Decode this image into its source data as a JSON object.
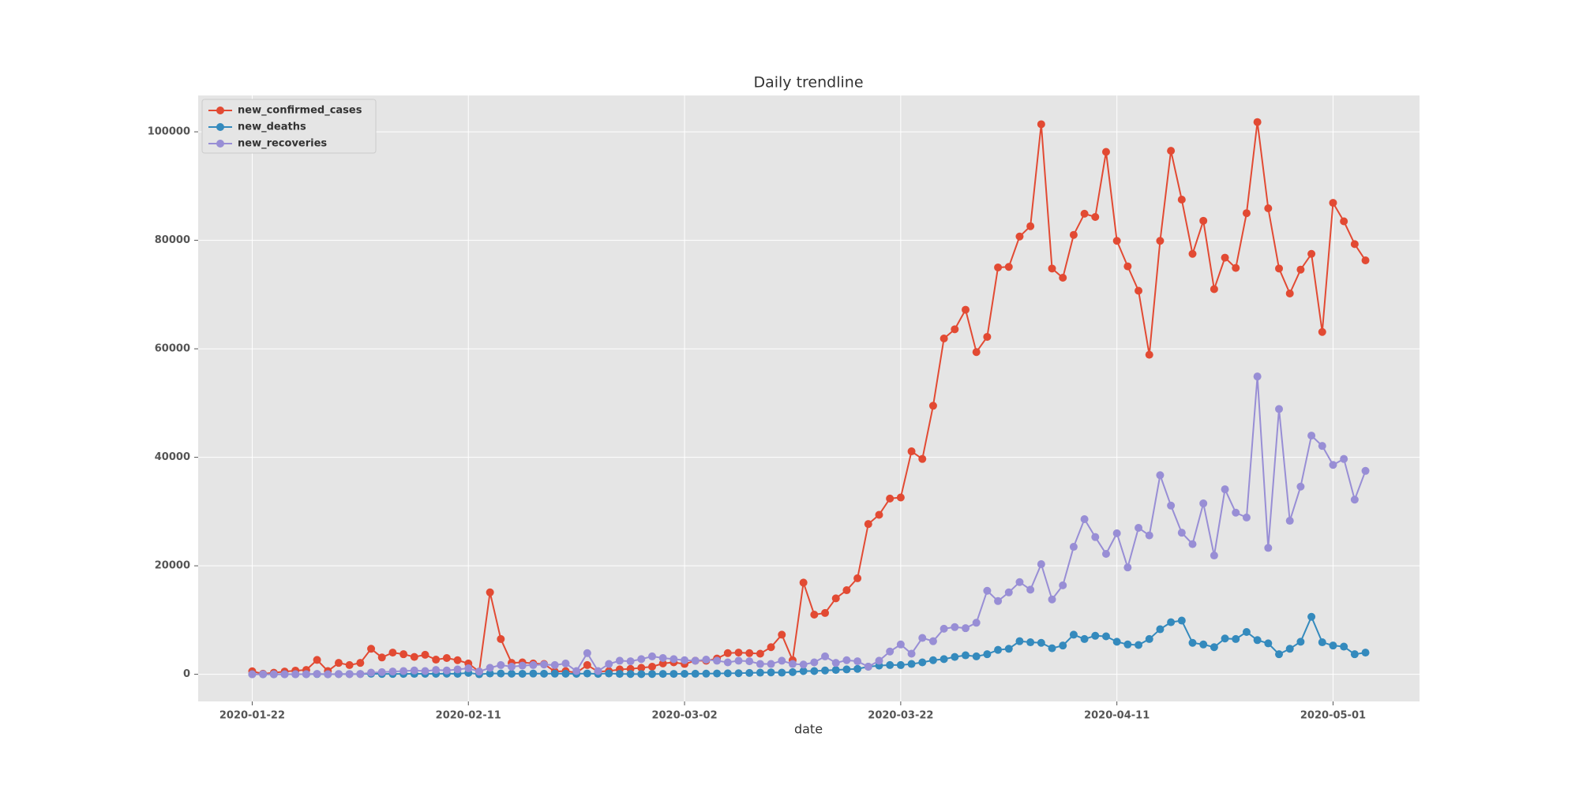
{
  "chart_data": {
    "type": "line",
    "title": "Daily trendline",
    "x_label": "date",
    "x": [
      "2020-01-22",
      "2020-01-23",
      "2020-01-24",
      "2020-01-25",
      "2020-01-26",
      "2020-01-27",
      "2020-01-28",
      "2020-01-29",
      "2020-01-30",
      "2020-01-31",
      "2020-02-01",
      "2020-02-02",
      "2020-02-03",
      "2020-02-04",
      "2020-02-05",
      "2020-02-06",
      "2020-02-07",
      "2020-02-08",
      "2020-02-09",
      "2020-02-10",
      "2020-02-11",
      "2020-02-12",
      "2020-02-13",
      "2020-02-14",
      "2020-02-15",
      "2020-02-16",
      "2020-02-17",
      "2020-02-18",
      "2020-02-19",
      "2020-02-20",
      "2020-02-21",
      "2020-02-22",
      "2020-02-23",
      "2020-02-24",
      "2020-02-25",
      "2020-02-26",
      "2020-02-27",
      "2020-02-28",
      "2020-02-29",
      "2020-03-01",
      "2020-03-02",
      "2020-03-03",
      "2020-03-04",
      "2020-03-05",
      "2020-03-06",
      "2020-03-07",
      "2020-03-08",
      "2020-03-09",
      "2020-03-10",
      "2020-03-11",
      "2020-03-12",
      "2020-03-13",
      "2020-03-14",
      "2020-03-15",
      "2020-03-16",
      "2020-03-17",
      "2020-03-18",
      "2020-03-19",
      "2020-03-20",
      "2020-03-21",
      "2020-03-22",
      "2020-03-23",
      "2020-03-24",
      "2020-03-25",
      "2020-03-26",
      "2020-03-27",
      "2020-03-28",
      "2020-03-29",
      "2020-03-30",
      "2020-03-31",
      "2020-04-01",
      "2020-04-02",
      "2020-04-03",
      "2020-04-04",
      "2020-04-05",
      "2020-04-06",
      "2020-04-07",
      "2020-04-08",
      "2020-04-09",
      "2020-04-10",
      "2020-04-11",
      "2020-04-12",
      "2020-04-13",
      "2020-04-14",
      "2020-04-15",
      "2020-04-16",
      "2020-04-17",
      "2020-04-18",
      "2020-04-19",
      "2020-04-20",
      "2020-04-21",
      "2020-04-22",
      "2020-04-23",
      "2020-04-24",
      "2020-04-25",
      "2020-04-26",
      "2020-04-27",
      "2020-04-28",
      "2020-04-29",
      "2020-04-30",
      "2020-05-01",
      "2020-05-02",
      "2020-05-03",
      "2020-05-04"
    ],
    "series": [
      {
        "name": "new_confirmed_cases",
        "color": "#E24A33",
        "values": [
          555,
          100,
          290,
          500,
          680,
          800,
          2650,
          600,
          2100,
          1700,
          2100,
          4700,
          3100,
          4000,
          3700,
          3200,
          3600,
          2700,
          3000,
          2600,
          2000,
          500,
          15100,
          6500,
          2100,
          2200,
          2000,
          1900,
          500,
          600,
          300,
          1700,
          500,
          600,
          900,
          1000,
          1200,
          1400,
          2000,
          2200,
          1900,
          2500,
          2500,
          2900,
          3900,
          4000,
          3900,
          3800,
          5000,
          7300,
          2600,
          16900,
          11000,
          11300,
          14000,
          15500,
          17700,
          27700,
          29400,
          32400,
          32600,
          41100,
          39700,
          49500,
          61900,
          63600,
          67200,
          59400,
          62200,
          75000,
          75100,
          80700,
          82600,
          101400,
          74800,
          73100,
          81000,
          84900,
          84300,
          96300,
          79900,
          75200,
          70700,
          58900,
          79900,
          96500,
          87500,
          77500,
          83600,
          71000,
          76800,
          74900,
          85000,
          101800,
          85900,
          74800,
          70200,
          74600,
          77500,
          63100,
          86900,
          83500,
          79300,
          76300
        ]
      },
      {
        "name": "new_deaths",
        "color": "#348ABD",
        "values": [
          17,
          1,
          8,
          16,
          14,
          26,
          49,
          2,
          38,
          42,
          46,
          103,
          64,
          66,
          73,
          86,
          89,
          97,
          108,
          97,
          254,
          13,
          143,
          142,
          106,
          98,
          139,
          112,
          118,
          109,
          97,
          150,
          79,
          150,
          80,
          55,
          40,
          60,
          70,
          80,
          90,
          100,
          120,
          150,
          180,
          200,
          250,
          300,
          350,
          300,
          400,
          600,
          600,
          700,
          800,
          900,
          1000,
          1400,
          1600,
          1700,
          1700,
          1900,
          2200,
          2600,
          2800,
          3200,
          3500,
          3300,
          3700,
          4500,
          4700,
          6100,
          5900,
          5800,
          4800,
          5300,
          7300,
          6500,
          7100,
          7000,
          6000,
          5500,
          5400,
          6500,
          8300,
          9600,
          9900,
          5800,
          5500,
          5000,
          6600,
          6500,
          7800,
          6300,
          5700,
          3700,
          4700,
          6000,
          10600,
          5900,
          5300,
          5100,
          3700,
          4000
        ]
      },
      {
        "name": "new_recoveries",
        "color": "#988ED5",
        "values": [
          0,
          9,
          7,
          3,
          10,
          20,
          70,
          10,
          50,
          30,
          60,
          300,
          400,
          500,
          600,
          700,
          600,
          800,
          700,
          900,
          1100,
          500,
          1200,
          1700,
          1400,
          1600,
          1700,
          1800,
          1700,
          2000,
          600,
          3900,
          600,
          1900,
          2500,
          2400,
          2800,
          3300,
          3000,
          2800,
          2600,
          2500,
          2700,
          2500,
          2200,
          2500,
          2400,
          1900,
          1900,
          2500,
          1900,
          1800,
          2200,
          3300,
          2100,
          2600,
          2400,
          1400,
          2500,
          4200,
          5500,
          3800,
          6700,
          6100,
          8400,
          8700,
          8500,
          9500,
          15400,
          13500,
          15100,
          17000,
          15600,
          20300,
          13800,
          16400,
          23500,
          28600,
          25300,
          22200,
          26000,
          19700,
          27000,
          25600,
          36700,
          31100,
          26100,
          24000,
          31500,
          21900,
          34100,
          29800,
          28900,
          54900,
          23300,
          48900,
          28300,
          34600,
          44000,
          42100,
          38600,
          39700,
          32200,
          37500
        ]
      }
    ],
    "xlim": [
      "2020-01-17",
      "2020-05-09"
    ],
    "xticks": [
      "2020-01-22",
      "2020-02-11",
      "2020-03-02",
      "2020-03-22",
      "2020-04-11",
      "2020-05-01"
    ],
    "ylim": [
      -5000,
      106700
    ],
    "yticks": [
      0,
      20000,
      40000,
      60000,
      80000,
      100000
    ],
    "grid": true,
    "legend": "upper left"
  }
}
